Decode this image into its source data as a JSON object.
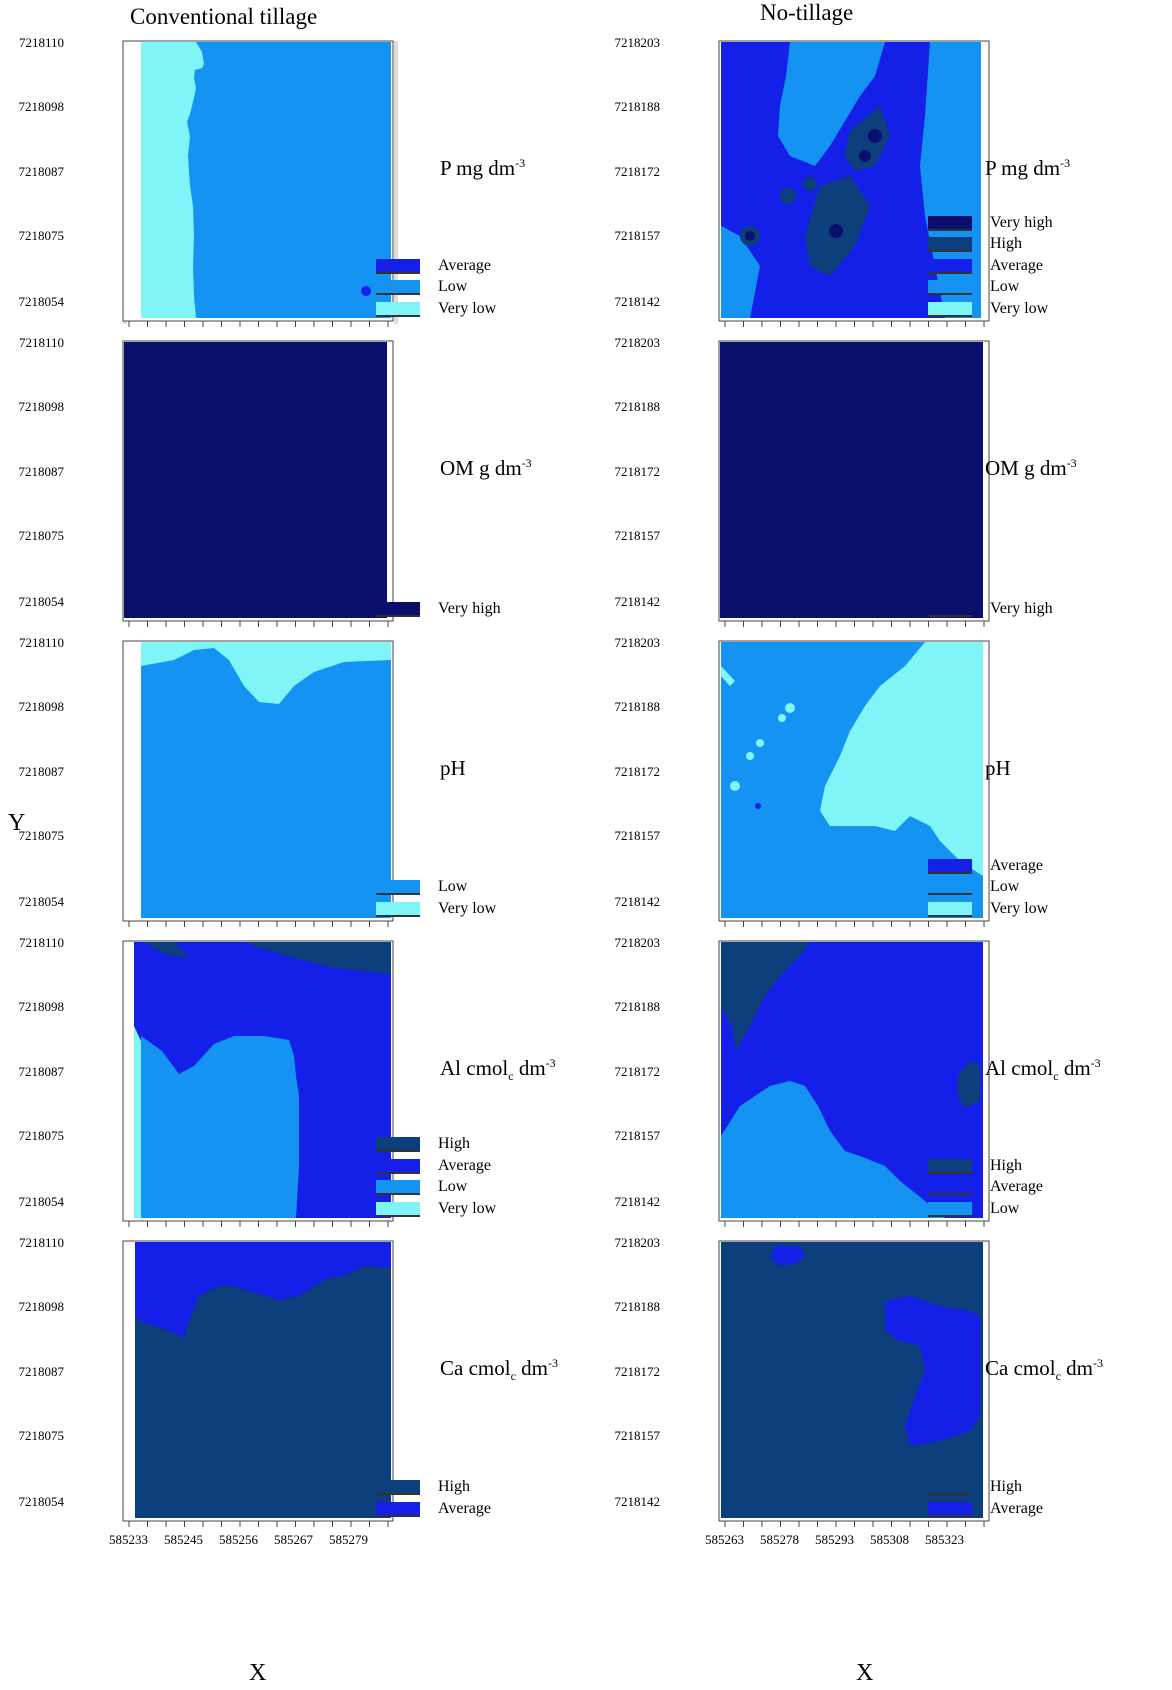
{
  "column_titles": {
    "left": "Conventional tillage",
    "right": "No-tillage"
  },
  "axis_letters": {
    "y": "Y",
    "x": "X"
  },
  "y_ticks": {
    "left": [
      "7218110",
      "7218098",
      "7218087",
      "7218075",
      "7218054"
    ],
    "right": [
      "7218203",
      "7218188",
      "7218172",
      "7218157",
      "7218142"
    ]
  },
  "x_ticks": {
    "left": [
      "585233",
      "585245",
      "585256",
      "585267",
      "585279"
    ],
    "right": [
      "585263",
      "585278",
      "585293",
      "585308",
      "585323"
    ]
  },
  "colors": {
    "very_high": "#0a0f6e",
    "high": "#0c3f7c",
    "average": "#1420e8",
    "low": "#1593f2",
    "very_low": "#7ff5f7"
  },
  "rows": [
    {
      "variable": {
        "name": "P mg dm",
        "sup": "-3",
        "sub": ""
      },
      "left_legend": [
        "Average",
        "Low",
        "Very low"
      ],
      "right_legend": [
        "Very high",
        "High",
        "Average",
        "Low",
        "Very low"
      ]
    },
    {
      "variable": {
        "name": "OM g dm",
        "sup": "-3",
        "sub": ""
      },
      "left_legend": [
        "Very high"
      ],
      "right_legend": [
        "Very high"
      ]
    },
    {
      "variable": {
        "name": "pH",
        "sup": "",
        "sub": ""
      },
      "left_legend": [
        "Low",
        "Very low"
      ],
      "right_legend": [
        "Average",
        "Low",
        "Very low"
      ]
    },
    {
      "variable": {
        "name": "Al cmol",
        "sub": "c",
        "suffix": " dm",
        "sup": "-3"
      },
      "left_legend": [
        "High",
        "Average",
        "Low",
        "Very low"
      ],
      "right_legend": [
        "High",
        "Average",
        "Low"
      ]
    },
    {
      "variable": {
        "name": "Ca cmol",
        "sub": "c",
        "suffix": " dm",
        "sup": "-3"
      },
      "left_legend": [
        "High",
        "Average"
      ],
      "right_legend": [
        "High",
        "Average"
      ]
    }
  ]
}
